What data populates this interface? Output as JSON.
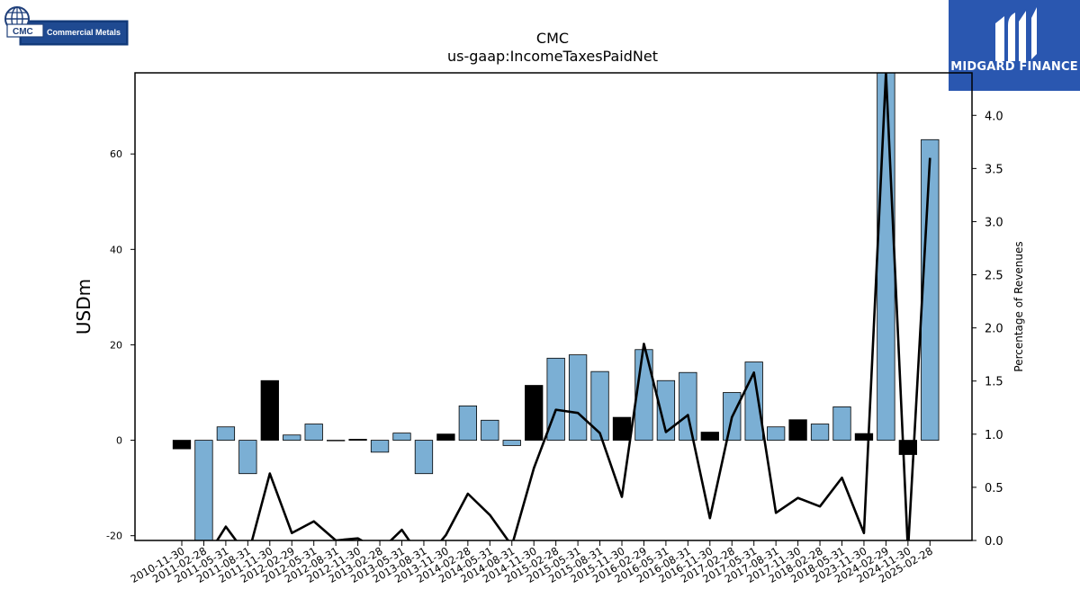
{
  "logos": {
    "left_badge": "CMC",
    "left_name": "Commercial Metals",
    "right_name": "MIDGARD FINANCE"
  },
  "chart_data": {
    "type": "bar",
    "title": "CMC",
    "subtitle": "us-gaap:IncomeTaxesPaidNet",
    "ylabel": "USDm",
    "y2label": "Percentage of Revenues",
    "ylim": [
      -21,
      77
    ],
    "y2lim": [
      0,
      4.4
    ],
    "yticks": [
      -20,
      0,
      20,
      40,
      60
    ],
    "y2ticks": [
      0.0,
      0.5,
      1.0,
      1.5,
      2.0,
      2.5,
      3.0,
      3.5,
      4.0
    ],
    "categories": [
      "2010-11-30",
      "2011-02-28",
      "2011-05-31",
      "2011-08-31",
      "2011-11-30",
      "2012-02-29",
      "2012-05-31",
      "2012-08-31",
      "2012-11-30",
      "2013-02-28",
      "2013-05-31",
      "2013-08-31",
      "2013-11-30",
      "2014-02-28",
      "2014-05-31",
      "2014-08-31",
      "2014-11-30",
      "2015-02-28",
      "2015-05-31",
      "2015-08-31",
      "2015-11-30",
      "2016-02-29",
      "2016-05-31",
      "2016-08-31",
      "2016-11-30",
      "2017-02-28",
      "2017-05-31",
      "2017-08-31",
      "2017-11-30",
      "2018-02-28",
      "2018-05-31",
      "2023-11-30",
      "2024-02-29",
      "2024-11-30",
      "2025-02-28"
    ],
    "series": [
      {
        "kind": "bar",
        "values": [
          -1.8,
          -22,
          2.8,
          -7,
          12.5,
          1.1,
          3.4,
          -0.1,
          0.2,
          -2.5,
          1.5,
          -7,
          1.3,
          7.2,
          4.2,
          -1.1,
          11.5,
          17.2,
          17.9,
          14.4,
          4.8,
          19,
          12.5,
          14.2,
          1.7,
          10,
          16.4,
          2.8,
          4.3,
          3.4,
          7,
          1.4,
          80,
          -3,
          63
        ],
        "colors": [
          "#000000",
          "#7bafd4",
          "#7bafd4",
          "#7bafd4",
          "#000000",
          "#7bafd4",
          "#7bafd4",
          "#000000",
          "#000000",
          "#7bafd4",
          "#7bafd4",
          "#7bafd4",
          "#000000",
          "#7bafd4",
          "#7bafd4",
          "#7bafd4",
          "#000000",
          "#7bafd4",
          "#7bafd4",
          "#7bafd4",
          "#000000",
          "#7bafd4",
          "#7bafd4",
          "#7bafd4",
          "#000000",
          "#7bafd4",
          "#7bafd4",
          "#7bafd4",
          "#000000",
          "#7bafd4",
          "#7bafd4",
          "#000000",
          "#7bafd4",
          "#000000",
          "#7bafd4"
        ]
      },
      {
        "kind": "line",
        "axis": "right",
        "color": "#000000",
        "values": [
          null,
          -0.2,
          0.13,
          -0.15,
          0.63,
          0.07,
          0.18,
          0.0,
          0.02,
          -0.1,
          0.1,
          -0.2,
          0.05,
          0.44,
          0.24,
          -0.05,
          0.68,
          1.23,
          1.2,
          1.01,
          0.41,
          1.85,
          1.02,
          1.18,
          0.21,
          1.16,
          1.58,
          0.26,
          0.4,
          0.32,
          0.59,
          0.07,
          4.4,
          -0.1,
          3.6
        ]
      }
    ],
    "grid": false,
    "legend": "none"
  }
}
